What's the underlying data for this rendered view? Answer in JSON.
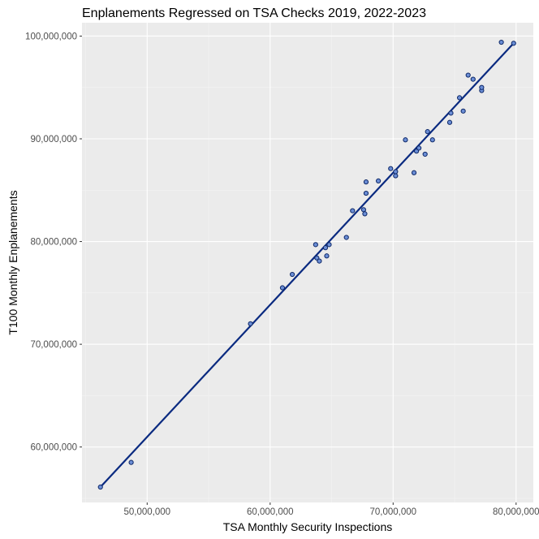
{
  "chart_data": {
    "type": "scatter",
    "title": "Enplanements Regressed on TSA Checks 2019, 2022-2023",
    "xlabel": "TSA Monthly Security Inspections",
    "ylabel": "T100 Monthly Enplanements",
    "xlim": [
      44700000,
      81400000
    ],
    "ylim": [
      54600000,
      101300000
    ],
    "x_ticks": [
      {
        "value": 50000000,
        "label": "50,000,000"
      },
      {
        "value": 60000000,
        "label": "60,000,000"
      },
      {
        "value": 70000000,
        "label": "70,000,000"
      },
      {
        "value": 80000000,
        "label": "80,000,000"
      }
    ],
    "y_ticks": [
      {
        "value": 60000000,
        "label": "60,000,000"
      },
      {
        "value": 70000000,
        "label": "70,000,000"
      },
      {
        "value": 80000000,
        "label": "80,000,000"
      },
      {
        "value": 90000000,
        "label": "90,000,000"
      },
      {
        "value": 100000000,
        "label": "100,000,000"
      }
    ],
    "grid": true,
    "regression_line": {
      "x": [
        46200000,
        79800000
      ],
      "y": [
        56100000,
        99300000
      ]
    },
    "points": [
      {
        "x": 46200000,
        "y": 56100000
      },
      {
        "x": 48700000,
        "y": 58500000
      },
      {
        "x": 58400000,
        "y": 72000000
      },
      {
        "x": 61000000,
        "y": 75500000
      },
      {
        "x": 61800000,
        "y": 76800000
      },
      {
        "x": 63700000,
        "y": 79700000
      },
      {
        "x": 63800000,
        "y": 78400000
      },
      {
        "x": 64000000,
        "y": 78100000
      },
      {
        "x": 64500000,
        "y": 79400000
      },
      {
        "x": 64600000,
        "y": 78600000
      },
      {
        "x": 64800000,
        "y": 79700000
      },
      {
        "x": 66200000,
        "y": 80400000
      },
      {
        "x": 66700000,
        "y": 83000000
      },
      {
        "x": 67600000,
        "y": 83100000
      },
      {
        "x": 67700000,
        "y": 82700000
      },
      {
        "x": 67800000,
        "y": 84700000
      },
      {
        "x": 67800000,
        "y": 85800000
      },
      {
        "x": 68800000,
        "y": 85900000
      },
      {
        "x": 69800000,
        "y": 87100000
      },
      {
        "x": 70200000,
        "y": 86400000
      },
      {
        "x": 70200000,
        "y": 86800000
      },
      {
        "x": 71000000,
        "y": 89900000
      },
      {
        "x": 71700000,
        "y": 86700000
      },
      {
        "x": 71900000,
        "y": 88800000
      },
      {
        "x": 72100000,
        "y": 89100000
      },
      {
        "x": 72600000,
        "y": 88500000
      },
      {
        "x": 72800000,
        "y": 90700000
      },
      {
        "x": 73200000,
        "y": 89900000
      },
      {
        "x": 74600000,
        "y": 91600000
      },
      {
        "x": 74700000,
        "y": 92500000
      },
      {
        "x": 75400000,
        "y": 94000000
      },
      {
        "x": 75700000,
        "y": 92700000
      },
      {
        "x": 76100000,
        "y": 96200000
      },
      {
        "x": 76500000,
        "y": 95800000
      },
      {
        "x": 77200000,
        "y": 94700000
      },
      {
        "x": 77200000,
        "y": 95000000
      },
      {
        "x": 78800000,
        "y": 99400000
      },
      {
        "x": 79800000,
        "y": 99300000
      }
    ],
    "colors": {
      "panel": "#ebebeb",
      "grid_major": "#ffffff",
      "grid_minor": "#f4f4f4",
      "point_fill": "#6b8ed6",
      "point_stroke": "#0d2766",
      "line": "#0a2a80",
      "tick": "#333333"
    }
  }
}
